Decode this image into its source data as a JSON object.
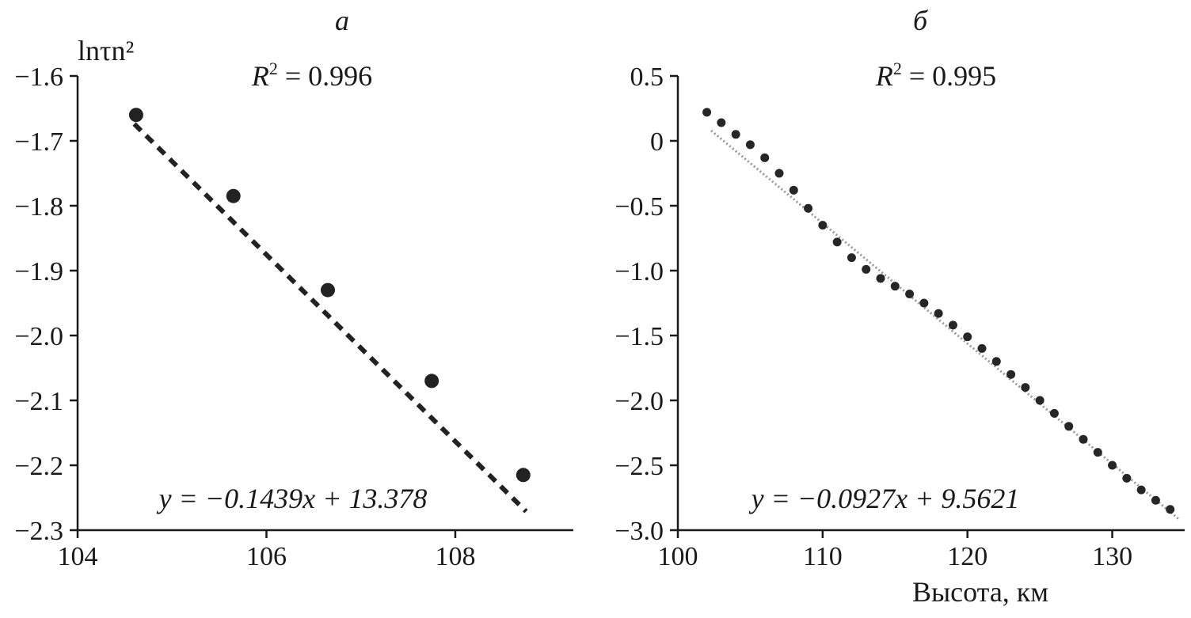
{
  "chart_data": [
    {
      "panel_label": "а",
      "type": "scatter",
      "ylabel": "lnτn²",
      "xlabel": "",
      "xlim": [
        104,
        109.25
      ],
      "ylim": [
        -2.3,
        -1.6
      ],
      "xticks": [
        "104",
        "106",
        "108"
      ],
      "yticks": [
        "−1.6",
        "−1.7",
        "−1.8",
        "−1.9",
        "−2.0",
        "−2.1",
        "−2.2",
        "−2.3"
      ],
      "r2_label": "0.996",
      "equation": "y = −0.1439x + 13.378",
      "markers": {
        "x": [
          104.62,
          105.65,
          106.65,
          107.75,
          108.72
        ],
        "y": [
          -1.66,
          -1.785,
          -1.93,
          -2.07,
          -2.215
        ]
      },
      "trendline": {
        "slope": -0.1439,
        "intercept": 13.378,
        "x": [
          104.6,
          108.75
        ],
        "style": "dashed"
      },
      "grid": false
    },
    {
      "panel_label": "б",
      "type": "scatter",
      "ylabel": "",
      "xlabel": "Высота, км",
      "xlim": [
        100,
        135
      ],
      "ylim": [
        -3.0,
        0.5
      ],
      "xticks": [
        "100",
        "110",
        "120",
        "130"
      ],
      "yticks": [
        "0.5",
        "0",
        "−0.5",
        "−1.0",
        "−1.5",
        "−2.0",
        "−2.5",
        "−3.0"
      ],
      "r2_label": "0.995",
      "equation": "y = −0.0927x + 9.5621",
      "points": {
        "x": [
          102,
          103,
          104,
          105,
          106,
          107,
          108,
          109,
          110,
          111,
          112,
          113,
          114,
          115,
          116,
          117,
          118,
          119,
          120,
          121,
          122,
          123,
          124,
          125,
          126,
          127,
          128,
          129,
          130,
          131,
          132,
          133,
          134
        ],
        "y": [
          0.22,
          0.14,
          0.05,
          -0.03,
          -0.13,
          -0.25,
          -0.38,
          -0.52,
          -0.65,
          -0.78,
          -0.9,
          -0.99,
          -1.06,
          -1.12,
          -1.18,
          -1.25,
          -1.33,
          -1.42,
          -1.51,
          -1.6,
          -1.7,
          -1.8,
          -1.9,
          -2.0,
          -2.1,
          -2.2,
          -2.3,
          -2.4,
          -2.5,
          -2.6,
          -2.69,
          -2.77,
          -2.84
        ]
      },
      "trendline": {
        "slope": -0.0927,
        "intercept": 9.5621,
        "x": [
          102.3,
          134.6
        ],
        "style": "dotted"
      },
      "grid": false
    }
  ]
}
